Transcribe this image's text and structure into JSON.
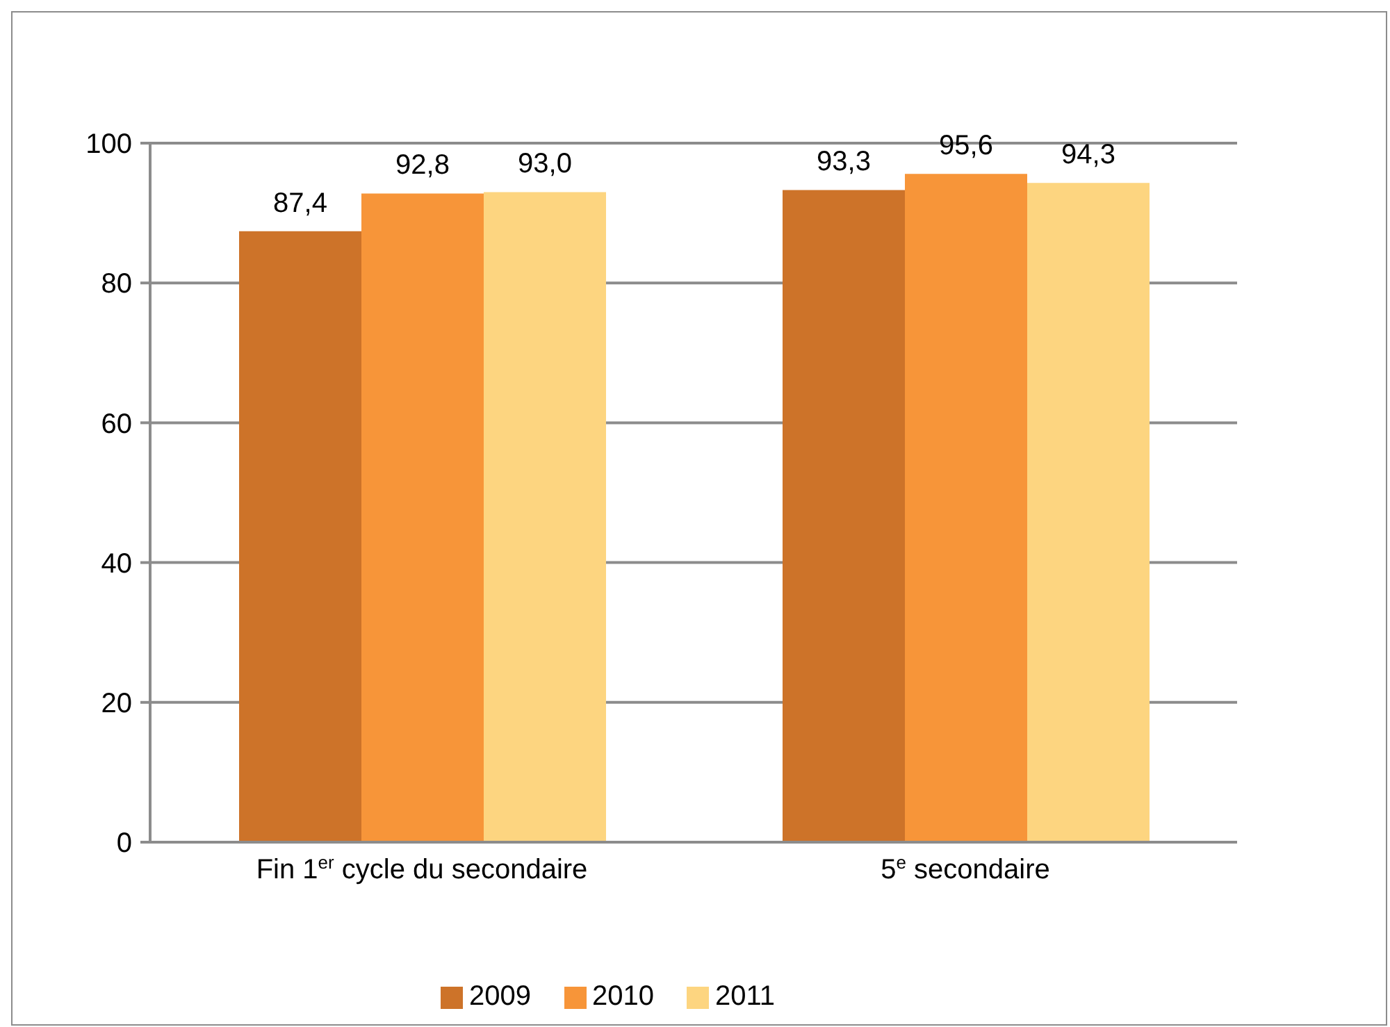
{
  "chart_data": {
    "type": "bar",
    "categories": [
      "Fin 1$^{er}$ cycle du secondaire",
      "5$^{e}$ secondaire"
    ],
    "series": [
      {
        "name": "2009",
        "color": "#cd7329",
        "values": [
          87.4,
          93.3
        ],
        "value_labels": [
          "87,4",
          "93,3"
        ]
      },
      {
        "name": "2010",
        "color": "#f79539",
        "values": [
          92.8,
          95.6
        ],
        "value_labels": [
          "92,8",
          "95,6"
        ]
      },
      {
        "name": "2011",
        "color": "#fdd580",
        "values": [
          93.0,
          94.3
        ],
        "value_labels": [
          "93,0",
          "94,3"
        ]
      }
    ],
    "ylim": [
      0,
      100
    ],
    "yticks": [
      0,
      20,
      40,
      60,
      80,
      100
    ],
    "grid": "y",
    "legend": "bottom"
  }
}
